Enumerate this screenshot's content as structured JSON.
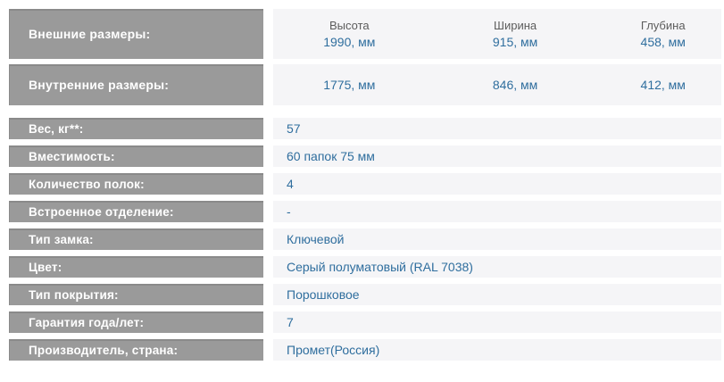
{
  "table": {
    "dimension_headers": [
      "Высота",
      "Ширина",
      "Глубина"
    ],
    "outer_dimensions": {
      "label": "Внешние размеры:",
      "values": [
        "1990, мм",
        "915, мм",
        "458, мм"
      ]
    },
    "inner_dimensions": {
      "label": "Внутренние размеры:",
      "values": [
        "1775, мм",
        "846, мм",
        "412, мм"
      ]
    },
    "rows": [
      {
        "label": "Вес, кг**:",
        "value": "57"
      },
      {
        "label": "Вместимость:",
        "value": "60 папок 75 мм"
      },
      {
        "label": "Количество полок:",
        "value": "4"
      },
      {
        "label": "Встроенное отделение:",
        "value": "-"
      },
      {
        "label": "Тип замка:",
        "value": "Ключевой"
      },
      {
        "label": "Цвет:",
        "value": "Серый полуматовый (RAL 7038)"
      },
      {
        "label": "Тип покрытия:",
        "value": "Порошковое"
      },
      {
        "label": "Гарантия года/лет:",
        "value": "7"
      },
      {
        "label": "Производитель, страна:",
        "value": "Промет(Россия)"
      }
    ],
    "colors": {
      "label_background": "#9a9a9a",
      "label_text": "#ffffff",
      "value_background": "#f5f5f7",
      "value_text": "#2f6e9e",
      "dimension_header_text": "#5c5c5c"
    }
  }
}
